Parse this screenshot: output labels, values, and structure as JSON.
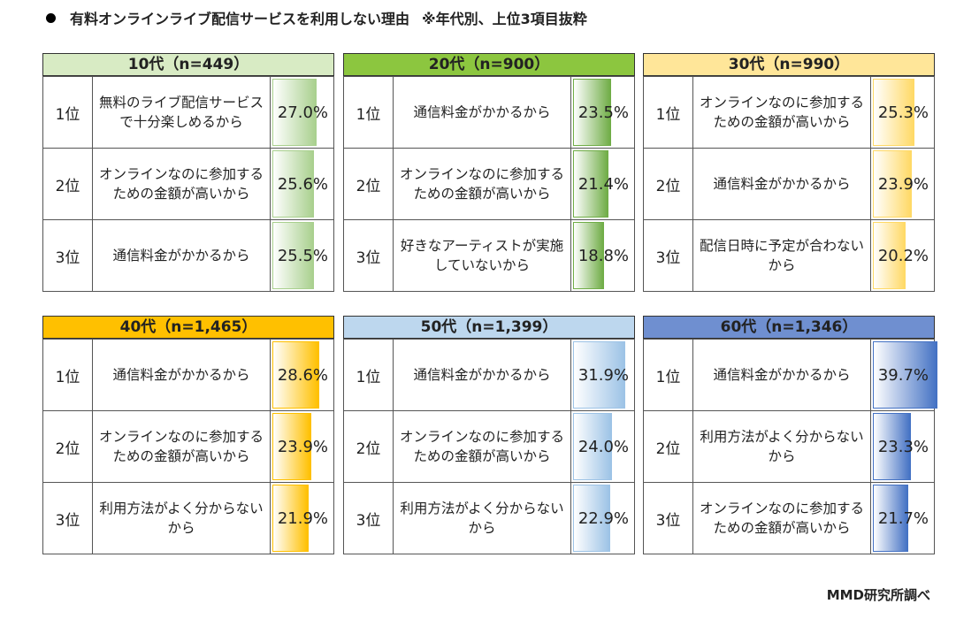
{
  "title": "有料オンラインライブ配信サービスを利用しない理由",
  "note": "※年代別、上位3項目抜粋",
  "source": "MMD研究所調べ",
  "chart_data": [
    {
      "type": "table",
      "header": "10代（n=449）",
      "header_color": "#d8ebc4",
      "bar_color": "#a9d08e",
      "rows": [
        {
          "rank": "1位",
          "reason": "無料のライブ配信サービスで十分楽しめるから",
          "value": 27.0,
          "label": "27.0%"
        },
        {
          "rank": "2位",
          "reason": "オンラインなのに参加するための金額が高いから",
          "value": 25.6,
          "label": "25.6%"
        },
        {
          "rank": "3位",
          "reason": "通信料金がかかるから",
          "value": 25.5,
          "label": "25.5%"
        }
      ]
    },
    {
      "type": "table",
      "header": "20代（n=900）",
      "header_color": "#8cc63f",
      "bar_color": "#70ad47",
      "rows": [
        {
          "rank": "1位",
          "reason": "通信料金がかかるから",
          "value": 23.5,
          "label": "23.5%"
        },
        {
          "rank": "2位",
          "reason": "オンラインなのに参加するための金額が高いから",
          "value": 21.4,
          "label": "21.4%"
        },
        {
          "rank": "3位",
          "reason": "好きなアーティストが実施していないから",
          "value": 18.8,
          "label": "18.8%"
        }
      ]
    },
    {
      "type": "table",
      "header": "30代（n=990）",
      "header_color": "#ffe699",
      "bar_color": "#ffd966",
      "rows": [
        {
          "rank": "1位",
          "reason": "オンラインなのに参加するための金額が高いから",
          "value": 25.3,
          "label": "25.3%"
        },
        {
          "rank": "2位",
          "reason": "通信料金がかかるから",
          "value": 23.9,
          "label": "23.9%"
        },
        {
          "rank": "3位",
          "reason": "配信日時に予定が合わないから",
          "value": 20.2,
          "label": "20.2%"
        }
      ]
    },
    {
      "type": "table",
      "header": "40代（n=1,465）",
      "header_color": "#ffc000",
      "bar_color": "#ffc000",
      "rows": [
        {
          "rank": "1位",
          "reason": "通信料金がかかるから",
          "value": 28.6,
          "label": "28.6%"
        },
        {
          "rank": "2位",
          "reason": "オンラインなのに参加するための金額が高いから",
          "value": 23.9,
          "label": "23.9%"
        },
        {
          "rank": "3位",
          "reason": "利用方法がよく分からないから",
          "value": 21.9,
          "label": "21.9%"
        }
      ]
    },
    {
      "type": "table",
      "header": "50代（n=1,399）",
      "header_color": "#bdd7ee",
      "bar_color": "#9dc3e6",
      "rows": [
        {
          "rank": "1位",
          "reason": "通信料金がかかるから",
          "value": 31.9,
          "label": "31.9%"
        },
        {
          "rank": "2位",
          "reason": "オンラインなのに参加するための金額が高いから",
          "value": 24.0,
          "label": "24.0%"
        },
        {
          "rank": "3位",
          "reason": "利用方法がよく分からないから",
          "value": 22.9,
          "label": "22.9%"
        }
      ]
    },
    {
      "type": "table",
      "header": "60代（n=1,346）",
      "header_color": "#6f8fd0",
      "bar_color": "#4472c4",
      "rows": [
        {
          "rank": "1位",
          "reason": "通信料金がかかるから",
          "value": 39.7,
          "label": "39.7%"
        },
        {
          "rank": "2位",
          "reason": "利用方法がよく分からないから",
          "value": 23.3,
          "label": "23.3%"
        },
        {
          "rank": "3位",
          "reason": "オンラインなのに参加するための金額が高いから",
          "value": 21.7,
          "label": "21.7%"
        }
      ]
    }
  ]
}
